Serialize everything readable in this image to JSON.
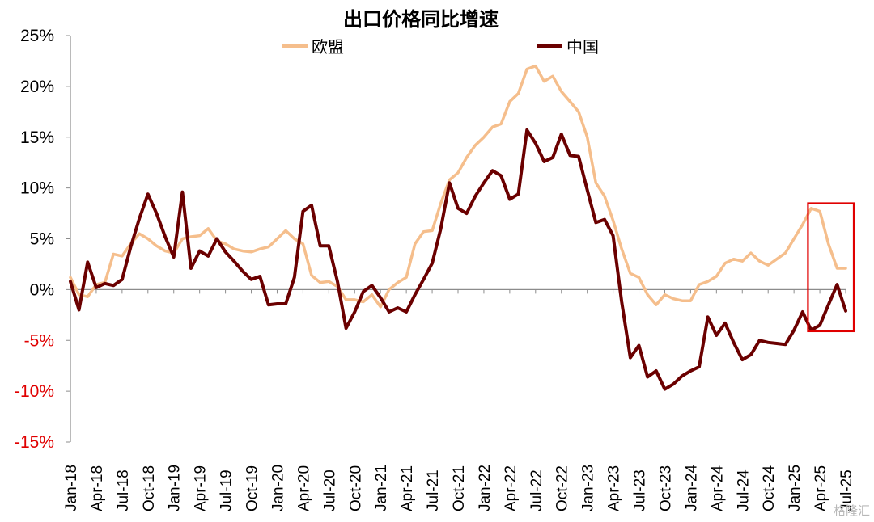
{
  "chart_data": {
    "type": "line",
    "title": "出口价格同比增速",
    "ylim": [
      -15,
      25
    ],
    "yticks": [
      {
        "value": 25,
        "label": "25%"
      },
      {
        "value": 20,
        "label": "20%"
      },
      {
        "value": 15,
        "label": "15%"
      },
      {
        "value": 10,
        "label": "10%"
      },
      {
        "value": 5,
        "label": "5%"
      },
      {
        "value": 0,
        "label": "0%"
      },
      {
        "value": -5,
        "label": "-5%"
      },
      {
        "value": -10,
        "label": "-10%"
      },
      {
        "value": -15,
        "label": "-15%"
      }
    ],
    "negative_tick_color": "#e00000",
    "positive_tick_color": "#000000",
    "x_start": "Jan-18",
    "x_end": "Jul-25",
    "xtick_labels": [
      "Jan-18",
      "Apr-18",
      "Jul-18",
      "Oct-18",
      "Jan-19",
      "Apr-19",
      "Jul-19",
      "Oct-19",
      "Jan-20",
      "Apr-20",
      "Jul-20",
      "Oct-20",
      "Jan-21",
      "Apr-21",
      "Jul-21",
      "Oct-21",
      "Jan-22",
      "Apr-22",
      "Jul-22",
      "Oct-22",
      "Jan-23",
      "Apr-23",
      "Jul-23",
      "Oct-23",
      "Jan-24",
      "Apr-24",
      "Jul-24",
      "Oct-24",
      "Jan-25",
      "Apr-25",
      "Jul-25"
    ],
    "legend_position": "top",
    "series": [
      {
        "name": "欧盟",
        "color": "#f5be8c",
        "values": [
          1.2,
          -0.5,
          -0.7,
          0.5,
          0.7,
          3.5,
          3.3,
          4.5,
          5.5,
          5.0,
          4.3,
          3.8,
          3.6,
          5.0,
          5.2,
          5.3,
          6.0,
          4.8,
          4.5,
          4.0,
          3.8,
          3.7,
          4.0,
          4.2,
          5.0,
          5.8,
          5.0,
          4.5,
          1.4,
          0.7,
          0.8,
          0.3,
          -1.0,
          -1.0,
          -1.2,
          -0.5,
          -1.7,
          0.0,
          0.7,
          1.2,
          4.5,
          5.7,
          5.8,
          8.5,
          10.8,
          11.5,
          13.0,
          14.2,
          15.0,
          16.0,
          16.3,
          18.5,
          19.3,
          21.7,
          22.0,
          20.5,
          21.0,
          19.5,
          18.5,
          17.5,
          15.0,
          10.5,
          9.2,
          6.8,
          4.0,
          1.6,
          1.2,
          -0.5,
          -1.5,
          -0.5,
          -0.9,
          -1.1,
          -1.1,
          0.5,
          0.8,
          1.3,
          2.6,
          3.0,
          2.8,
          3.6,
          2.8,
          2.4,
          3.0,
          3.6,
          5.0,
          6.4,
          8.0,
          7.7,
          4.5,
          2.1,
          2.1
        ],
        "end_index": 90
      },
      {
        "name": "中国",
        "color": "#6b0000",
        "values": [
          0.8,
          -2.0,
          2.7,
          0.2,
          0.6,
          0.4,
          1.0,
          4.2,
          7.0,
          9.4,
          7.5,
          5.2,
          3.2,
          9.6,
          2.1,
          3.8,
          3.3,
          5.0,
          3.7,
          2.8,
          1.8,
          1.0,
          1.3,
          -1.5,
          -1.4,
          -1.4,
          1.2,
          7.7,
          8.3,
          4.3,
          4.3,
          0.8,
          -3.8,
          -2.2,
          -0.2,
          0.4,
          -0.8,
          -2.2,
          -1.8,
          -2.2,
          -0.5,
          1.0,
          2.6,
          6.0,
          10.5,
          8.0,
          7.5,
          9.2,
          10.5,
          11.7,
          11.2,
          8.9,
          9.4,
          15.7,
          14.4,
          12.6,
          13.0,
          15.3,
          13.2,
          13.1,
          9.8,
          6.6,
          6.9,
          5.3,
          -1.2,
          -6.7,
          -5.5,
          -8.6,
          -8.0,
          -9.8,
          -9.3,
          -8.5,
          -8.0,
          -7.6,
          -2.7,
          -4.5,
          -3.3,
          -5.2,
          -6.9,
          -6.4,
          -5.0,
          -5.2,
          -5.3,
          -5.4,
          -4.0,
          -2.2,
          -4.0,
          -3.5,
          -1.5,
          0.5,
          -2.1
        ],
        "end_index": 90
      }
    ],
    "highlight_box": {
      "x_from": "Mar-25",
      "x_to": "Jul-25",
      "y_from": -4.1,
      "y_to": 8.5,
      "color": "#e00000"
    }
  },
  "watermark": "格隆汇"
}
